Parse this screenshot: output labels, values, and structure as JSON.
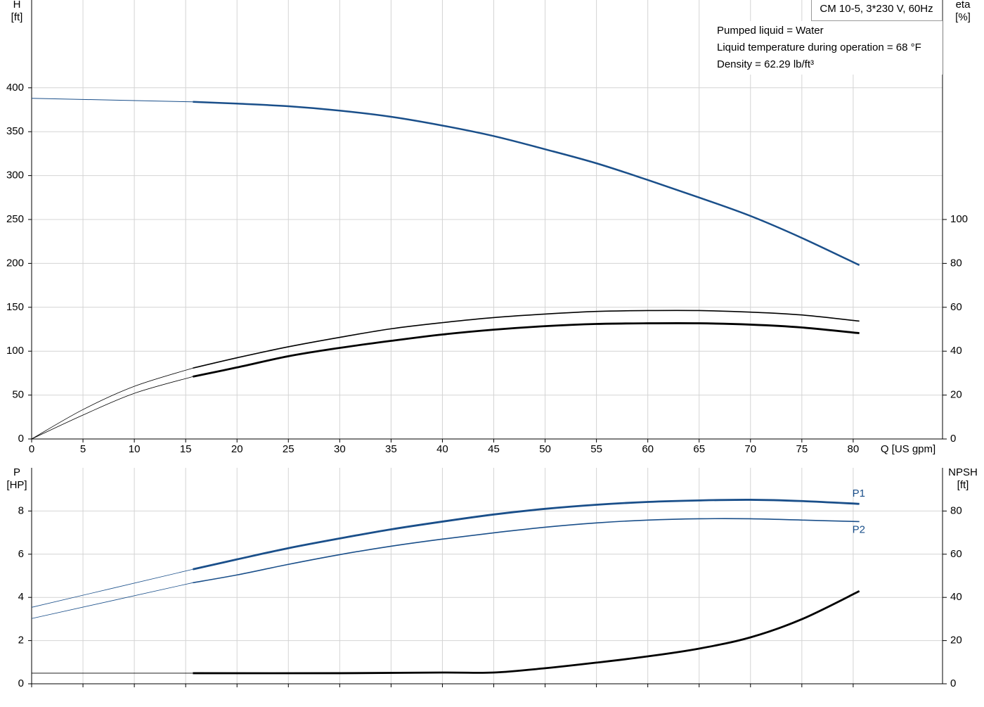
{
  "chart_data": [
    {
      "type": "line",
      "title": "CM 10-5, 3*230 V, 60Hz",
      "notes": [
        "Pumped liquid = Water",
        "Liquid temperature during operation = 68 °F",
        "Density = 62.29 lb/ft³"
      ],
      "y_label": "H",
      "y_unit": "[ft]",
      "y2_label": "eta",
      "y2_unit": "[%]",
      "x_label": "Q [US gpm]",
      "xlim": [
        0,
        88.7
      ],
      "xticks": [
        0,
        5,
        10,
        15,
        20,
        25,
        30,
        35,
        40,
        45,
        50,
        55,
        60,
        65,
        70,
        75,
        80
      ],
      "show_xtick_labels": true,
      "ylim": [
        0,
        500
      ],
      "yticks": [
        0,
        50,
        100,
        150,
        200,
        250,
        300,
        350,
        400
      ],
      "y2lim": [
        0,
        200
      ],
      "y2ticks": [
        0,
        20,
        40,
        60,
        80,
        100
      ],
      "grid": true,
      "series": [
        {
          "color": "#1a4f8a",
          "line_width": 1,
          "x": [
            0,
            15.7
          ],
          "values": [
            388,
            384
          ]
        },
        {
          "color": "#1a4f8a",
          "line_width": 2.5,
          "x": [
            15.7,
            20,
            25,
            30,
            35,
            40,
            45,
            50,
            55,
            60,
            65,
            70,
            75,
            80.6
          ],
          "values": [
            384,
            382,
            379,
            374,
            367,
            357,
            345,
            330,
            314,
            295,
            275,
            254,
            229,
            198
          ]
        },
        {
          "color": "#000000",
          "line_width": 0.8,
          "axis": "y2",
          "x": [
            0,
            5,
            10,
            15.7
          ],
          "values": [
            0,
            13.4,
            24,
            32.3
          ]
        },
        {
          "color": "#000000",
          "line_width": 1.6,
          "axis": "y2",
          "x": [
            15.7,
            20,
            25,
            30,
            35,
            40,
            45,
            50,
            55,
            60,
            65,
            70,
            75,
            80.6
          ],
          "values": [
            32.3,
            37,
            42,
            46.3,
            50.2,
            53,
            55.3,
            56.9,
            58.1,
            58.5,
            58.5,
            57.8,
            56.5,
            53.7
          ]
        },
        {
          "color": "#000000",
          "line_width": 0.8,
          "axis": "y2",
          "x": [
            0,
            5,
            10,
            15.7
          ],
          "values": [
            0,
            10.9,
            20.8,
            28.4
          ]
        },
        {
          "color": "#000000",
          "line_width": 2.8,
          "axis": "y2",
          "x": [
            15.7,
            20,
            25,
            30,
            35,
            40,
            45,
            50,
            55,
            60,
            65,
            70,
            75,
            80.6
          ],
          "values": [
            28.4,
            32.6,
            37.7,
            41.5,
            44.7,
            47.6,
            49.8,
            51.4,
            52.4,
            52.7,
            52.7,
            52.1,
            50.8,
            48.2
          ]
        }
      ]
    },
    {
      "type": "line",
      "y_label": "P",
      "y_unit": "[HP]",
      "y2_label": "NPSH",
      "y2_unit": "[ft]",
      "xlim": [
        0,
        88.7
      ],
      "xticks": [
        0,
        5,
        10,
        15,
        20,
        25,
        30,
        35,
        40,
        45,
        50,
        55,
        60,
        65,
        70,
        75,
        80
      ],
      "show_xtick_labels": false,
      "ylim": [
        0,
        10
      ],
      "yticks": [
        0,
        2,
        4,
        6,
        8
      ],
      "y2lim": [
        0,
        100
      ],
      "y2ticks": [
        0,
        20,
        40,
        60,
        80
      ],
      "grid": true,
      "series": [
        {
          "color": "#1a4f8a",
          "line_width": 0.8,
          "x": [
            0,
            15.7
          ],
          "values": [
            3.54,
            5.3
          ]
        },
        {
          "name": "P1",
          "color": "#1a4f8a",
          "line_width": 2.8,
          "x": [
            15.7,
            20,
            25,
            30,
            35,
            40,
            45,
            50,
            55,
            60,
            65,
            70,
            75,
            80.6
          ],
          "values": [
            5.3,
            5.76,
            6.28,
            6.73,
            7.15,
            7.51,
            7.84,
            8.1,
            8.29,
            8.42,
            8.49,
            8.52,
            8.46,
            8.33
          ]
        },
        {
          "color": "#1a4f8a",
          "line_width": 0.8,
          "x": [
            0,
            15.7
          ],
          "values": [
            3.02,
            4.68
          ]
        },
        {
          "name": "P2",
          "color": "#1a4f8a",
          "line_width": 1.6,
          "x": [
            15.7,
            20,
            25,
            30,
            35,
            40,
            45,
            50,
            55,
            60,
            65,
            70,
            75,
            80.6
          ],
          "values": [
            4.68,
            5.04,
            5.53,
            5.98,
            6.37,
            6.7,
            6.99,
            7.25,
            7.45,
            7.58,
            7.64,
            7.64,
            7.58,
            7.51
          ]
        },
        {
          "color": "#000000",
          "line_width": 0.8,
          "axis": "y2",
          "x": [
            0,
            15.7
          ],
          "values": [
            4.9,
            4.9
          ]
        },
        {
          "color": "#000000",
          "line_width": 2.8,
          "axis": "y2",
          "x": [
            15.7,
            30,
            40,
            45,
            50,
            55,
            60,
            65,
            70,
            75,
            80.6
          ],
          "values": [
            4.9,
            4.9,
            5.2,
            5.2,
            7.2,
            9.8,
            12.7,
            16.3,
            21.5,
            29.9,
            42.9
          ]
        }
      ]
    }
  ]
}
